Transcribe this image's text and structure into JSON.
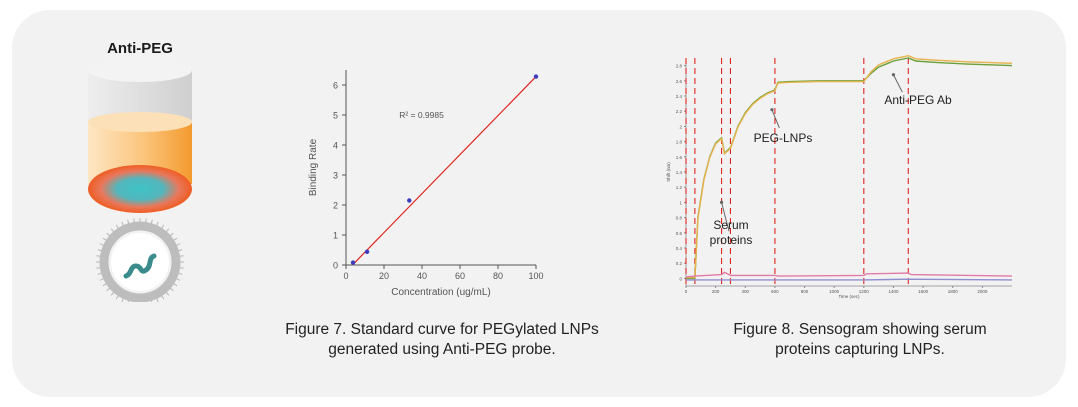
{
  "probe": {
    "title": "Anti-PEG",
    "colors": {
      "cap": "#d9d9d9",
      "tube_top": "#fde2b8",
      "tube_bottom": "#f5a13a",
      "tip": "#ef6a2a",
      "tip_center": "#3bb8bf",
      "particle_ring": "#c7c7c7",
      "peg_strand": "#3a8c8c"
    }
  },
  "figure7": {
    "caption_line1": "Figure 7. Standard curve for PEGylated LNPs",
    "caption_line2": "generated using Anti-PEG probe.",
    "chart_data": {
      "type": "scatter",
      "xlabel": "Concentration (ug/mL)",
      "ylabel": "Binding Rate",
      "xlim": [
        0,
        100
      ],
      "ylim": [
        0,
        6.5
      ],
      "xticks": [
        "0",
        "20",
        "40",
        "60",
        "80",
        "100"
      ],
      "yticks": [
        "0",
        "1",
        "2",
        "3",
        "4",
        "5",
        "6"
      ],
      "grid": false,
      "annotation": "R² = 0.9985",
      "points": [
        {
          "x": 3.7,
          "y": 0.08
        },
        {
          "x": 11.1,
          "y": 0.44
        },
        {
          "x": 33.3,
          "y": 2.15
        },
        {
          "x": 100,
          "y": 6.28
        }
      ],
      "trendline": {
        "x": [
          3.7,
          100
        ],
        "y": [
          0.02,
          6.28
        ]
      },
      "colors": {
        "points": "#3b3bbf",
        "trendline": "#e0251f",
        "axis": "#555555"
      }
    }
  },
  "figure8": {
    "caption_line1": "Figure 8. Sensogram showing serum",
    "caption_line2": "proteins capturing LNPs.",
    "annotations": {
      "serum_line1": "Serum",
      "serum_line2": "proteins",
      "peg_lnps": "PEG-LNPs",
      "anti_peg_ab": "Anti-PEG Ab"
    },
    "chart_data": {
      "type": "line",
      "xlabel": "Time (sec)",
      "ylabel": "Shift (nm)",
      "xlim": [
        0,
        2200
      ],
      "ylim": [
        -0.1,
        2.9
      ],
      "xticks": [
        "0",
        "200",
        "400",
        "600",
        "800",
        "1000",
        "1200",
        "1400",
        "1600",
        "1800",
        "2000"
      ],
      "yticks": [
        "0",
        "0.2",
        "0.4",
        "0.6",
        "0.8",
        "1",
        "1.2",
        "1.4",
        "1.6",
        "1.8",
        "2",
        "2.2",
        "2.4",
        "2.6",
        "2.8"
      ],
      "step_boundaries": [
        0,
        60,
        240,
        300,
        600,
        1200,
        1500
      ],
      "series": [
        {
          "color": "#6aa03a",
          "x": [
            0,
            60,
            80,
            120,
            160,
            200,
            240,
            260,
            300,
            350,
            400,
            450,
            500,
            550,
            600,
            620,
            700,
            900,
            1100,
            1200,
            1250,
            1300,
            1400,
            1500,
            1550,
            1700,
            1900,
            2200
          ],
          "y": [
            0,
            0,
            0.8,
            1.3,
            1.6,
            1.78,
            1.85,
            1.65,
            1.72,
            2.0,
            2.18,
            2.3,
            2.38,
            2.44,
            2.48,
            2.58,
            2.59,
            2.6,
            2.6,
            2.6,
            2.7,
            2.78,
            2.86,
            2.9,
            2.86,
            2.84,
            2.82,
            2.8
          ]
        },
        {
          "color": "#e6b24a",
          "x": [
            0,
            60,
            80,
            120,
            160,
            200,
            240,
            260,
            300,
            350,
            400,
            450,
            500,
            550,
            600,
            620,
            700,
            900,
            1100,
            1200,
            1250,
            1300,
            1400,
            1500,
            1550,
            1700,
            1900,
            2200
          ],
          "y": [
            0.01,
            0.01,
            0.79,
            1.29,
            1.59,
            1.77,
            1.84,
            1.64,
            1.71,
            1.99,
            2.17,
            2.29,
            2.37,
            2.43,
            2.47,
            2.57,
            2.58,
            2.59,
            2.59,
            2.59,
            2.72,
            2.81,
            2.89,
            2.93,
            2.89,
            2.87,
            2.85,
            2.83
          ]
        },
        {
          "color": "#e07aa6",
          "x": [
            0,
            60,
            240,
            260,
            300,
            600,
            620,
            1200,
            1220,
            1500,
            1520,
            2200
          ],
          "y": [
            0.02,
            0.03,
            0.05,
            0.08,
            0.04,
            0.04,
            0.03,
            0.04,
            0.06,
            0.07,
            0.05,
            0.03
          ]
        },
        {
          "color": "#8f8fd0",
          "x": [
            0,
            600,
            1200,
            1500,
            2200
          ],
          "y": [
            -0.02,
            -0.02,
            -0.02,
            -0.01,
            -0.02
          ]
        }
      ],
      "colors": {
        "boundary": "#e0251f",
        "axis": "#888888"
      }
    }
  }
}
